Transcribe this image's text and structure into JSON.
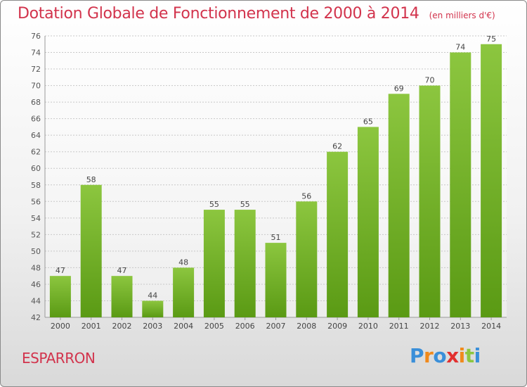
{
  "chart_data": {
    "type": "bar",
    "title": "Dotation Globale de Fonctionnement de 2000 à 2014",
    "unit": "(en milliers d'€)",
    "categories": [
      "2000",
      "2001",
      "2002",
      "2003",
      "2004",
      "2005",
      "2006",
      "2007",
      "2008",
      "2009",
      "2010",
      "2011",
      "2012",
      "2013",
      "2014"
    ],
    "values": [
      47,
      58,
      47,
      44,
      48,
      55,
      55,
      51,
      56,
      62,
      65,
      69,
      70,
      74,
      75
    ],
    "ylim": [
      42,
      76
    ],
    "yticks": [
      42,
      44,
      46,
      48,
      50,
      52,
      54,
      56,
      58,
      60,
      62,
      64,
      66,
      68,
      70,
      72,
      74,
      76
    ],
    "grid": true,
    "bar_color_top": "#8cc63f",
    "bar_color_bottom": "#5a9a14",
    "title_color": "#d2334c"
  },
  "footer": {
    "commune": "ESPARRON",
    "logo_letters": [
      "P",
      "r",
      "o",
      "x",
      "i",
      "t",
      "i"
    ],
    "logo_colors": [
      "#3a8fd9",
      "#f08a1c",
      "#3a8fd9",
      "#e2302f",
      "#f08a1c",
      "#8cc63f",
      "#3a8fd9"
    ]
  }
}
